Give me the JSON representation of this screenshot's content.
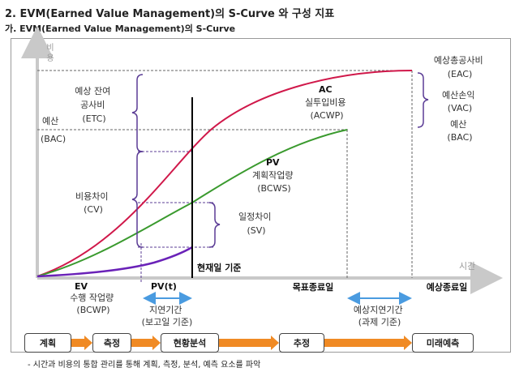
{
  "heading": "2. EVM(Earned Value Management)의 S-Curve 와 구성 지표",
  "subheading": "가. EVM(Earned Value Management)의 S-Curve",
  "axes": {
    "y_label": "비용",
    "x_label": "시간"
  },
  "labels": {
    "etc": [
      "예상 잔여",
      "공사비",
      "(ETC)"
    ],
    "budget": [
      "예산",
      "(BAC)"
    ],
    "cv": [
      "비용차이",
      "(CV)"
    ],
    "ac": [
      "AC",
      "실투입비용",
      "(ACWP)"
    ],
    "pv": [
      "PV",
      "계획작업량",
      "(BCWS)"
    ],
    "sv": [
      "일정차이",
      "(SV)"
    ],
    "eac": [
      "예상총공사비",
      "(EAC)"
    ],
    "vac": [
      "예산손익",
      "(VAC)"
    ],
    "bac_right": [
      "예산",
      "(BAC)"
    ],
    "ev": [
      "EV",
      "수행 작업량",
      "(BCWP)"
    ],
    "pvt": "PV(t)",
    "status_date": "현재일 기준",
    "target_end": "목표종료일",
    "expected_end": "예상종료일",
    "delay": [
      "지연기간",
      "(보고일 기준)"
    ],
    "expected_delay": [
      "예상지연기간",
      "(과제 기준)"
    ]
  },
  "process": [
    "계획",
    "측정",
    "현황분석",
    "추정",
    "미래예측"
  ],
  "footnote": "-    시간과 비용의 통합 관리를 통해 계획, 측정, 분석, 예측 요소를 파악",
  "colors": {
    "ac": "#d0184a",
    "pv": "#3a9a2e",
    "ev": "#6a22b8",
    "braces": "#5b3c95",
    "arrow": "#4a9be0",
    "process_arrow": "#f08a24"
  }
}
